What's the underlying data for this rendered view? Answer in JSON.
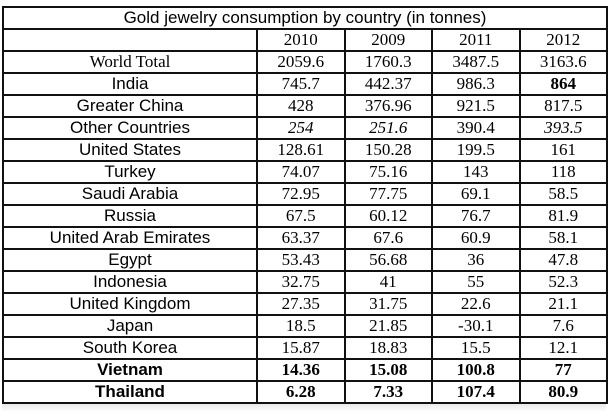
{
  "table": {
    "title": "Gold jewelry consumption by country (in tonnes)",
    "years": [
      "2010",
      "2009",
      "2011",
      "2012"
    ],
    "rows": [
      {
        "country": "World Total",
        "values": [
          "2059.6",
          "1760.3",
          "3487.5",
          "3163.6"
        ]
      },
      {
        "country": "India",
        "values": [
          "745.7",
          "442.37",
          "986.3",
          "864"
        ]
      },
      {
        "country": "Greater China",
        "values": [
          "428",
          "376.96",
          "921.5",
          "817.5"
        ]
      },
      {
        "country": "Other Countries",
        "values": [
          "254",
          "251.6",
          "390.4",
          "393.5"
        ]
      },
      {
        "country": "United States",
        "values": [
          "128.61",
          "150.28",
          "199.5",
          "161"
        ]
      },
      {
        "country": "Turkey",
        "values": [
          "74.07",
          "75.16",
          "143",
          "118"
        ]
      },
      {
        "country": "Saudi Arabia",
        "values": [
          "72.95",
          "77.75",
          "69.1",
          "58.5"
        ]
      },
      {
        "country": "Russia",
        "values": [
          "67.5",
          "60.12",
          "76.7",
          "81.9"
        ]
      },
      {
        "country": "United Arab Emirates",
        "values": [
          "63.37",
          "67.6",
          "60.9",
          "58.1"
        ]
      },
      {
        "country": "Egypt",
        "values": [
          "53.43",
          "56.68",
          "36",
          "47.8"
        ]
      },
      {
        "country": "Indonesia",
        "values": [
          "32.75",
          "41",
          "55",
          "52.3"
        ]
      },
      {
        "country": "United Kingdom",
        "values": [
          "27.35",
          "31.75",
          "22.6",
          "21.1"
        ]
      },
      {
        "country": "Japan",
        "values": [
          "18.5",
          "21.85",
          "-30.1",
          "7.6"
        ]
      },
      {
        "country": "South Korea",
        "values": [
          "15.87",
          "18.83",
          "15.5",
          "12.1"
        ]
      },
      {
        "country": "Vietnam",
        "values": [
          "14.36",
          "15.08",
          "100.8",
          "77"
        ]
      },
      {
        "country": "Thailand",
        "values": [
          "6.28",
          "7.33",
          "107.4",
          "80.9"
        ]
      }
    ]
  }
}
